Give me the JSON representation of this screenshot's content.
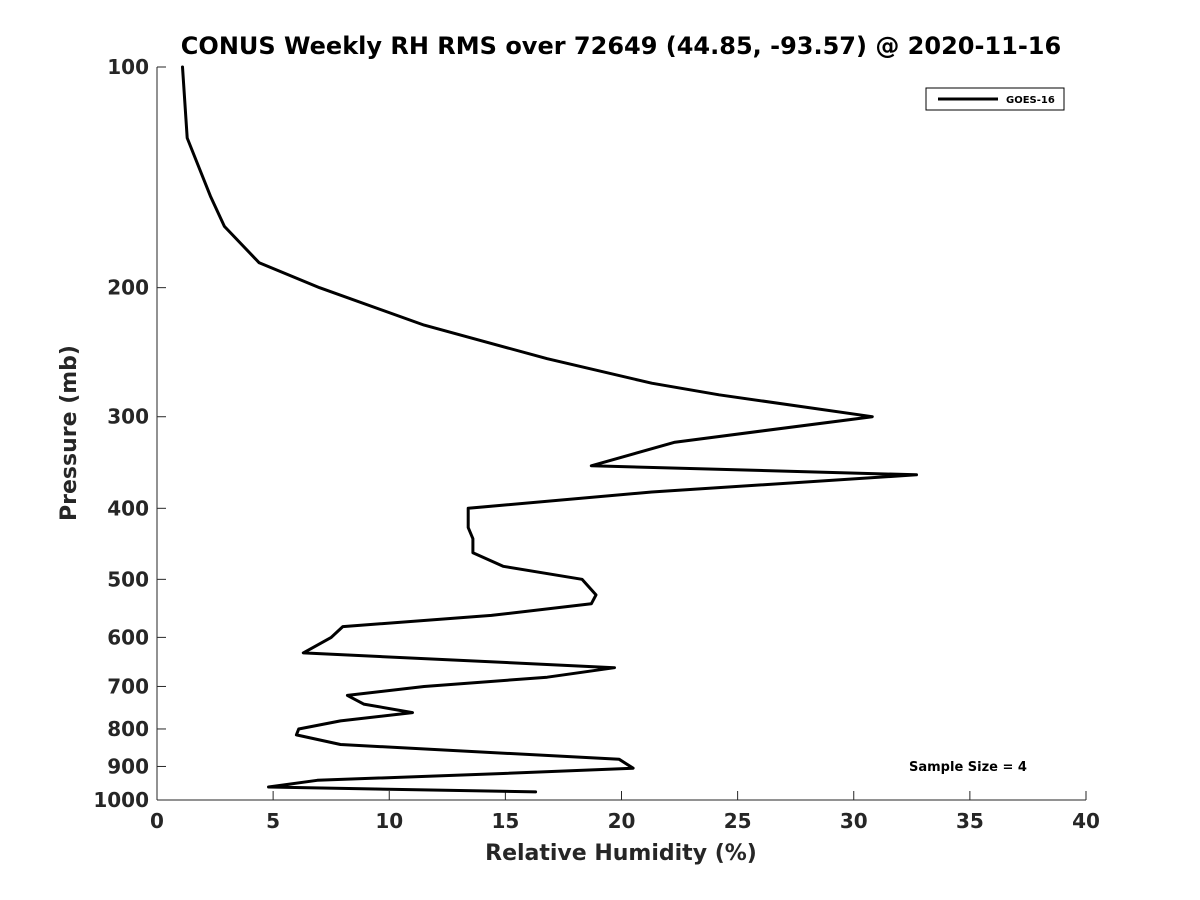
{
  "chart_data": {
    "type": "line",
    "title": "CONUS Weekly RH RMS over 72649 (44.85, -93.57) @ 2020-11-16",
    "xlabel": "Relative Humidity (%)",
    "ylabel": "Pressure (mb)",
    "xlim": [
      0,
      40
    ],
    "ylim": [
      100,
      1000
    ],
    "y_scale": "log",
    "y_reversed": true,
    "x_ticks": [
      0,
      5,
      10,
      15,
      20,
      25,
      30,
      35,
      40
    ],
    "y_ticks": [
      100,
      200,
      300,
      400,
      500,
      600,
      700,
      800,
      900,
      1000
    ],
    "grid": false,
    "legend_position": "top-right",
    "series": [
      {
        "name": "GOES-16",
        "color": "#000000",
        "points": [
          [
            1.1,
            100
          ],
          [
            1.3,
            125
          ],
          [
            2.3,
            150
          ],
          [
            2.9,
            165
          ],
          [
            4.4,
            185
          ],
          [
            7.0,
            200
          ],
          [
            11.5,
            225
          ],
          [
            16.8,
            250
          ],
          [
            21.3,
            270
          ],
          [
            24.2,
            280
          ],
          [
            30.8,
            300
          ],
          [
            22.3,
            325
          ],
          [
            18.7,
            350
          ],
          [
            32.7,
            360
          ],
          [
            21.3,
            380
          ],
          [
            13.4,
            400
          ],
          [
            13.4,
            425
          ],
          [
            13.6,
            440
          ],
          [
            13.6,
            460
          ],
          [
            14.9,
            480
          ],
          [
            18.3,
            500
          ],
          [
            18.9,
            525
          ],
          [
            18.7,
            540
          ],
          [
            14.4,
            560
          ],
          [
            8.0,
            580
          ],
          [
            7.5,
            600
          ],
          [
            6.3,
            630
          ],
          [
            19.7,
            660
          ],
          [
            16.8,
            680
          ],
          [
            11.5,
            700
          ],
          [
            8.2,
            720
          ],
          [
            8.9,
            740
          ],
          [
            11.0,
            760
          ],
          [
            7.9,
            780
          ],
          [
            6.1,
            800
          ],
          [
            6.0,
            815
          ],
          [
            7.9,
            840
          ],
          [
            19.9,
            880
          ],
          [
            20.5,
            905
          ],
          [
            14.9,
            920
          ],
          [
            6.9,
            940
          ],
          [
            4.8,
            960
          ],
          [
            16.3,
            975
          ]
        ]
      }
    ],
    "annotations": [
      {
        "text": "Sample Size = 4"
      }
    ]
  }
}
